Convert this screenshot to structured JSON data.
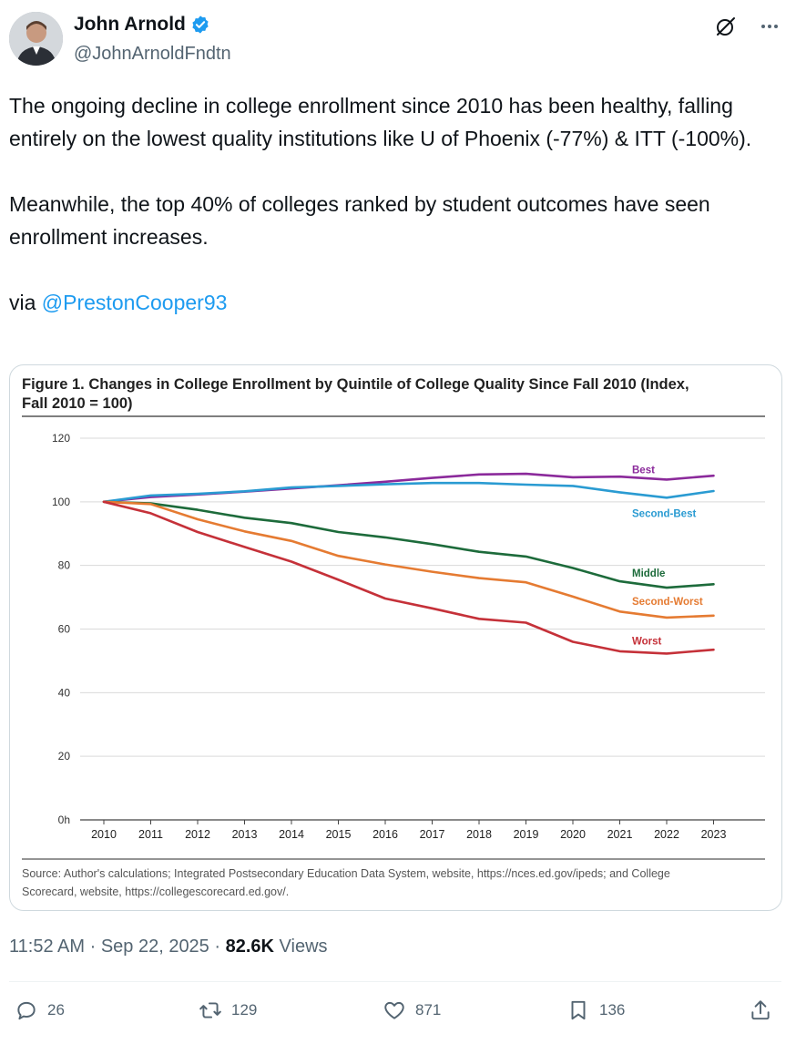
{
  "author": {
    "name": "John Arnold",
    "handle": "@JohnArnoldFndtn"
  },
  "tweet": {
    "line1": "The ongoing decline in college enrollment since 2010 has been healthy, falling entirely on the lowest quality institutions like U of Phoenix (-77%) & ITT (-100%).",
    "line2": "Meanwhile, the top 40% of colleges ranked by student outcomes have seen enrollment increases.",
    "via": "via ",
    "mention": "@PrestonCooper93"
  },
  "chart_data": {
    "type": "line",
    "title_line1": "Figure 1. Changes in College Enrollment by Quintile of College Quality Since Fall 2010 (Index,",
    "title_line2": "Fall 2010 = 100)",
    "x": [
      "2010",
      "2011",
      "2012",
      "2013",
      "2014",
      "2015",
      "2016",
      "2017",
      "2018",
      "2019",
      "2020",
      "2021",
      "2022",
      "2023"
    ],
    "ylim": [
      0,
      120
    ],
    "yticks": [
      "120",
      "100",
      "80",
      "60",
      "40",
      "20",
      "0h"
    ],
    "series": [
      {
        "name": "Best",
        "color": "#8b2a9b",
        "values": [
          100,
          101.5,
          102.3,
          103.2,
          104.2,
          105.2,
          106.3,
          107.5,
          108.6,
          108.8,
          107.7,
          107.9,
          107.0,
          108.2
        ]
      },
      {
        "name": "Second-Best",
        "color": "#2a9bd2",
        "values": [
          100,
          102.0,
          102.5,
          103.3,
          104.5,
          105.0,
          105.5,
          105.9,
          105.9,
          105.4,
          105.0,
          103.0,
          101.3,
          103.4
        ]
      },
      {
        "name": "Middle",
        "color": "#1d6b3b",
        "values": [
          100,
          99.5,
          97.5,
          95.0,
          93.3,
          90.5,
          88.8,
          86.7,
          84.3,
          82.8,
          79.2,
          75.0,
          73.0,
          74.1
        ]
      },
      {
        "name": "Second-Worst",
        "color": "#e57b32",
        "values": [
          100,
          99.3,
          94.5,
          90.7,
          87.7,
          83.0,
          80.3,
          78.0,
          76.0,
          74.7,
          70.2,
          65.5,
          63.6,
          64.2
        ]
      },
      {
        "name": "Worst",
        "color": "#c53139",
        "values": [
          100,
          96.4,
          90.5,
          85.8,
          81.2,
          75.5,
          69.6,
          66.5,
          63.2,
          62.0,
          56.0,
          53.0,
          52.3,
          53.5
        ]
      }
    ],
    "source_line1": "Source: Author's calculations; Integrated Postsecondary Education Data System, website, https://nces.ed.gov/ipeds; and College",
    "source_line2": "Scorecard, website, https://collegescorecard.ed.gov/."
  },
  "meta": {
    "time": "11:52 AM",
    "sep": " · ",
    "date": "Sep 22, 2025",
    "views_count": "82.6K",
    "views_label": " Views"
  },
  "actions": {
    "replies": "26",
    "reposts": "129",
    "likes": "871",
    "bookmarks": "136"
  }
}
